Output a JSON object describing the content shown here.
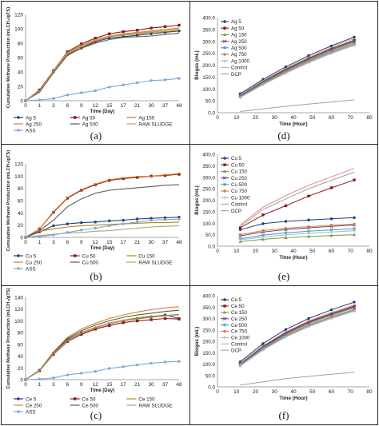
{
  "chart_data": [
    {
      "panel_label": "(a)",
      "type": "line",
      "xlabel": "Time (Day)",
      "ylabel": "Cumulative Methane Production (mLCH₄/gTS)",
      "x": [
        0,
        1,
        3,
        6,
        9,
        12,
        15,
        17,
        21,
        30,
        37,
        48
      ],
      "x_ticks": [
        "0",
        "1",
        "3",
        "6",
        "9",
        "12",
        "15",
        "17",
        "21",
        "30",
        "37",
        "48"
      ],
      "ylim": [
        0,
        120
      ],
      "y_ticks": [
        "0",
        "20",
        "40",
        "60",
        "80",
        "100",
        "120"
      ],
      "legend_position": "bottom",
      "series": [
        {
          "name": "Ag 5",
          "color": "#1f3f7a",
          "marker": "circle",
          "values": [
            0,
            14,
            40,
            64,
            73,
            82,
            87,
            89,
            91,
            93,
            95,
            97
          ]
        },
        {
          "name": "Ag 50",
          "color": "#8b1a1a",
          "marker": "square",
          "values": [
            0,
            15,
            42,
            68,
            79,
            87,
            93,
            96,
            98,
            101,
            103,
            105
          ]
        },
        {
          "name": "Ag 150",
          "color": "#b8860b",
          "marker": "none",
          "values": [
            0,
            13,
            41,
            65,
            75,
            83,
            89,
            91,
            93,
            95,
            96,
            98
          ]
        },
        {
          "name": "Ag 250",
          "color": "#e07b2a",
          "marker": "none",
          "values": [
            0,
            14,
            42,
            67,
            77,
            85,
            90,
            93,
            95,
            97,
            99,
            101
          ]
        },
        {
          "name": "Ag 500",
          "color": "#5a5a5a",
          "marker": "none",
          "values": [
            0,
            12,
            39,
            63,
            73,
            80,
            85,
            88,
            89,
            90,
            92,
            94
          ]
        },
        {
          "name": "RAW SLUDGE",
          "color": "#b0a070",
          "marker": "none",
          "values": [
            0,
            14,
            41,
            66,
            76,
            84,
            89,
            92,
            94,
            96,
            98,
            100
          ]
        },
        {
          "name": "ASS",
          "color": "#7fa7d9",
          "marker": "circle",
          "values": [
            0,
            1,
            3,
            8,
            11,
            14,
            19,
            22,
            25,
            28,
            29,
            31
          ]
        }
      ]
    },
    {
      "panel_label": "(b)",
      "type": "line",
      "xlabel": "Time (Day)",
      "ylabel": "Cumulative Methane Production (mLCH₄/gTS)",
      "x": [
        0,
        1,
        3,
        6,
        9,
        12,
        15,
        17,
        21,
        30,
        37,
        48
      ],
      "x_ticks": [
        "0",
        "1",
        "3",
        "6",
        "9",
        "12",
        "15",
        "17",
        "21",
        "30",
        "37",
        "48"
      ],
      "ylim": [
        0,
        120
      ],
      "y_ticks": [
        "0",
        "20",
        "40",
        "60",
        "80",
        "100",
        "120"
      ],
      "legend_position": "bottom",
      "series": [
        {
          "name": "Cu 5",
          "color": "#1f3f7a",
          "marker": "circle",
          "values": [
            0,
            9,
            19,
            22,
            24,
            25,
            27,
            28,
            30,
            31,
            32,
            33
          ]
        },
        {
          "name": "Cu 50",
          "color": "#8b1a1a",
          "marker": "square",
          "values": [
            0,
            14,
            41,
            64,
            77,
            86,
            93,
            96,
            98,
            100,
            101,
            103
          ]
        },
        {
          "name": "Cu 150",
          "color": "#b8860b",
          "marker": "none",
          "values": [
            0,
            10,
            14,
            17,
            19,
            20,
            21,
            22,
            23,
            24,
            24,
            25
          ]
        },
        {
          "name": "Cu 250",
          "color": "#e07b2a",
          "marker": "none",
          "values": [
            0,
            14,
            42,
            65,
            78,
            87,
            94,
            97,
            99,
            100,
            102,
            104
          ]
        },
        {
          "name": "Cu 500",
          "color": "#5a5a5a",
          "marker": "none",
          "values": [
            0,
            11,
            28,
            50,
            63,
            72,
            77,
            79,
            81,
            83,
            85,
            86
          ]
        },
        {
          "name": "RAW SLUDGE",
          "color": "#b0a070",
          "marker": "none",
          "values": [
            0,
            3,
            5,
            7,
            8,
            10,
            11,
            13,
            15,
            17,
            18,
            19
          ]
        },
        {
          "name": "ASS",
          "color": "#7fa7d9",
          "marker": "circle",
          "values": [
            0,
            1,
            4,
            8,
            12,
            15,
            19,
            22,
            25,
            28,
            29,
            30
          ]
        }
      ]
    },
    {
      "panel_label": "(c)",
      "type": "line",
      "xlabel": "Time (Day)",
      "ylabel": "Cumulative Methane Production (mLCH₄/gTS)",
      "x": [
        0,
        1,
        3,
        6,
        9,
        12,
        15,
        17,
        21,
        30,
        37,
        48
      ],
      "x_ticks": [
        "0",
        "1",
        "3",
        "6",
        "9",
        "12",
        "15",
        "17",
        "21",
        "30",
        "37",
        "48"
      ],
      "ylim": [
        0,
        140
      ],
      "y_ticks": [
        "0",
        "20",
        "40",
        "60",
        "80",
        "100",
        "120",
        "140"
      ],
      "legend_position": "bottom",
      "series": [
        {
          "name": "Ce 5",
          "color": "#1f3f7a",
          "marker": "circle",
          "values": [
            0,
            16,
            45,
            68,
            80,
            88,
            95,
            100,
            104,
            107,
            110,
            104
          ]
        },
        {
          "name": "Ce 50",
          "color": "#8b1a1a",
          "marker": "square",
          "values": [
            0,
            15,
            43,
            65,
            77,
            86,
            92,
            97,
            100,
            102,
            104,
            103
          ]
        },
        {
          "name": "Ce 150",
          "color": "#b8860b",
          "marker": "none",
          "values": [
            0,
            15,
            44,
            67,
            80,
            89,
            96,
            101,
            105,
            108,
            109,
            111
          ]
        },
        {
          "name": "Ce 250",
          "color": "#e07b2a",
          "marker": "none",
          "values": [
            0,
            16,
            47,
            72,
            86,
            96,
            104,
            110,
            115,
            119,
            122,
            124
          ]
        },
        {
          "name": "Ce 500",
          "color": "#5a5a5a",
          "marker": "none",
          "values": [
            0,
            16,
            46,
            70,
            83,
            93,
            100,
            106,
            110,
            113,
            116,
            118
          ]
        },
        {
          "name": "RAW SLUDGE",
          "color": "#b0a070",
          "marker": "none",
          "values": [
            0,
            15,
            44,
            66,
            79,
            88,
            95,
            100,
            103,
            106,
            108,
            110
          ]
        },
        {
          "name": "ASS",
          "color": "#7fa7d9",
          "marker": "circle",
          "values": [
            0,
            1,
            3,
            8,
            11,
            14,
            19,
            22,
            25,
            28,
            30,
            31
          ]
        }
      ]
    },
    {
      "panel_label": "(d)",
      "type": "line",
      "xlabel": "Time (Hour)",
      "ylabel": "Biogas (mL)",
      "x": [
        12,
        24,
        36,
        48,
        60,
        72
      ],
      "xlim": [
        0,
        80
      ],
      "x_ticks": [
        "0",
        "10",
        "20",
        "30",
        "40",
        "50",
        "60",
        "70",
        "80"
      ],
      "ylim": [
        0,
        400
      ],
      "y_ticks": [
        "0.0",
        "50.0",
        "100.0",
        "150.0",
        "200.0",
        "250.0",
        "300.0",
        "350.0",
        "400.0"
      ],
      "legend_position": "top-left",
      "series": [
        {
          "name": "Ag 5",
          "color": "#1f3f7a",
          "marker": "circle",
          "values": [
            80,
            140,
            193,
            240,
            281,
            318
          ]
        },
        {
          "name": "Ag 50",
          "color": "#8b1a1a",
          "marker": "square",
          "values": [
            74,
            132,
            183,
            229,
            270,
            305
          ]
        },
        {
          "name": "Ag 150",
          "color": "#7a9a3a",
          "marker": "triangle",
          "values": [
            70,
            127,
            177,
            222,
            262,
            297
          ]
        },
        {
          "name": "Ag 250",
          "color": "#6b4a8a",
          "marker": "x",
          "values": [
            72,
            130,
            180,
            226,
            266,
            301
          ]
        },
        {
          "name": "Ag 500",
          "color": "#3aa0b8",
          "marker": "star",
          "values": [
            68,
            124,
            173,
            218,
            257,
            292
          ]
        },
        {
          "name": "Ag 750",
          "color": "#e07b2a",
          "marker": "circle",
          "values": [
            66,
            121,
            170,
            214,
            253,
            287
          ]
        },
        {
          "name": "Ag 1000",
          "color": "#9ab8dc",
          "marker": "plus",
          "values": [
            64,
            118,
            166,
            210,
            249,
            283
          ]
        },
        {
          "name": "Control",
          "color": "#d9a0a0",
          "marker": "none",
          "values": [
            76,
            135,
            187,
            234,
            275,
            312
          ]
        },
        {
          "name": "DCP",
          "color": "#a0a0a0",
          "marker": "none",
          "values": [
            5,
            16,
            27,
            36,
            45,
            54
          ]
        }
      ]
    },
    {
      "panel_label": "(e)",
      "type": "line",
      "xlabel": "Time (Hour)",
      "ylabel": "Biogas (mL)",
      "x": [
        12,
        24,
        36,
        48,
        60,
        72
      ],
      "xlim": [
        0,
        80
      ],
      "x_ticks": [
        "0",
        "10",
        "20",
        "30",
        "40",
        "50",
        "60",
        "70",
        "80"
      ],
      "ylim": [
        0,
        400
      ],
      "y_ticks": [
        "0.0",
        "50.0",
        "100.0",
        "150.0",
        "200.0",
        "250.0",
        "300.0",
        "350.0",
        "400.0"
      ],
      "legend_position": "top-left",
      "series": [
        {
          "name": "Cu 5",
          "color": "#1f3f7a",
          "marker": "circle",
          "values": [
            72,
            98,
            108,
            114,
            119,
            124
          ]
        },
        {
          "name": "Cu 50",
          "color": "#8b1a1a",
          "marker": "square",
          "values": [
            80,
            136,
            176,
            218,
            254,
            288
          ]
        },
        {
          "name": "Cu 150",
          "color": "#7a9a3a",
          "marker": "triangle",
          "values": [
            20,
            30,
            37,
            42,
            46,
            50
          ]
        },
        {
          "name": "Cu 250",
          "color": "#6b4a8a",
          "marker": "x",
          "values": [
            45,
            62,
            72,
            80,
            86,
            92
          ]
        },
        {
          "name": "Cu 500",
          "color": "#3aa0b8",
          "marker": "star",
          "values": [
            32,
            48,
            58,
            65,
            71,
            76
          ]
        },
        {
          "name": "Cu 750",
          "color": "#e07b2a",
          "marker": "circle",
          "values": [
            50,
            68,
            78,
            85,
            91,
            96
          ]
        },
        {
          "name": "Cu 1000",
          "color": "#9ab8dc",
          "marker": "plus",
          "values": [
            28,
            40,
            49,
            56,
            62,
            67
          ]
        },
        {
          "name": "Control",
          "color": "#e08a7a",
          "marker": "none",
          "values": [
            92,
            170,
            220,
            265,
            302,
            338
          ]
        },
        {
          "name": "DCP",
          "color": "#a0a0a0",
          "marker": "none",
          "values": [
            86,
            160,
            206,
            250,
            287,
            322
          ]
        }
      ]
    },
    {
      "panel_label": "(f)",
      "type": "line",
      "xlabel": "Time (Hour)",
      "ylabel": "Biogas (mL)",
      "x": [
        12,
        24,
        36,
        48,
        60,
        72
      ],
      "xlim": [
        0,
        80
      ],
      "x_ticks": [
        "0",
        "10",
        "20",
        "30",
        "40",
        "50",
        "60",
        "70",
        "80"
      ],
      "ylim": [
        0,
        400
      ],
      "y_ticks": [
        "0.0",
        "50.0",
        "100.0",
        "150.0",
        "200.0",
        "250.0",
        "300.0",
        "350.0",
        "400.0"
      ],
      "legend_position": "top-left",
      "series": [
        {
          "name": "Ce 5",
          "color": "#1f3f7a",
          "marker": "circle",
          "values": [
            110,
            190,
            252,
            300,
            338,
            372
          ]
        },
        {
          "name": "Ce 50",
          "color": "#8b1a1a",
          "marker": "square",
          "values": [
            102,
            178,
            238,
            286,
            322,
            355
          ]
        },
        {
          "name": "Ce 150",
          "color": "#7a9a3a",
          "marker": "triangle",
          "values": [
            98,
            172,
            231,
            278,
            314,
            347
          ]
        },
        {
          "name": "Ce 250",
          "color": "#6b4a8a",
          "marker": "x",
          "values": [
            100,
            175,
            234,
            282,
            318,
            351
          ]
        },
        {
          "name": "Ce 500",
          "color": "#3aa0b8",
          "marker": "star",
          "values": [
            96,
            168,
            226,
            272,
            308,
            340
          ]
        },
        {
          "name": "Ce 750",
          "color": "#e07b2a",
          "marker": "circle",
          "values": [
            94,
            165,
            222,
            268,
            304,
            336
          ]
        },
        {
          "name": "Ce 1000",
          "color": "#9ab8dc",
          "marker": "plus",
          "values": [
            92,
            162,
            219,
            264,
            300,
            332
          ]
        },
        {
          "name": "Control",
          "color": "#d9a0a0",
          "marker": "none",
          "values": [
            104,
            181,
            242,
            290,
            327,
            360
          ]
        },
        {
          "name": "DCP",
          "color": "#a0a0a0",
          "marker": "none",
          "values": [
            8,
            22,
            36,
            46,
            55,
            64
          ]
        }
      ]
    }
  ]
}
